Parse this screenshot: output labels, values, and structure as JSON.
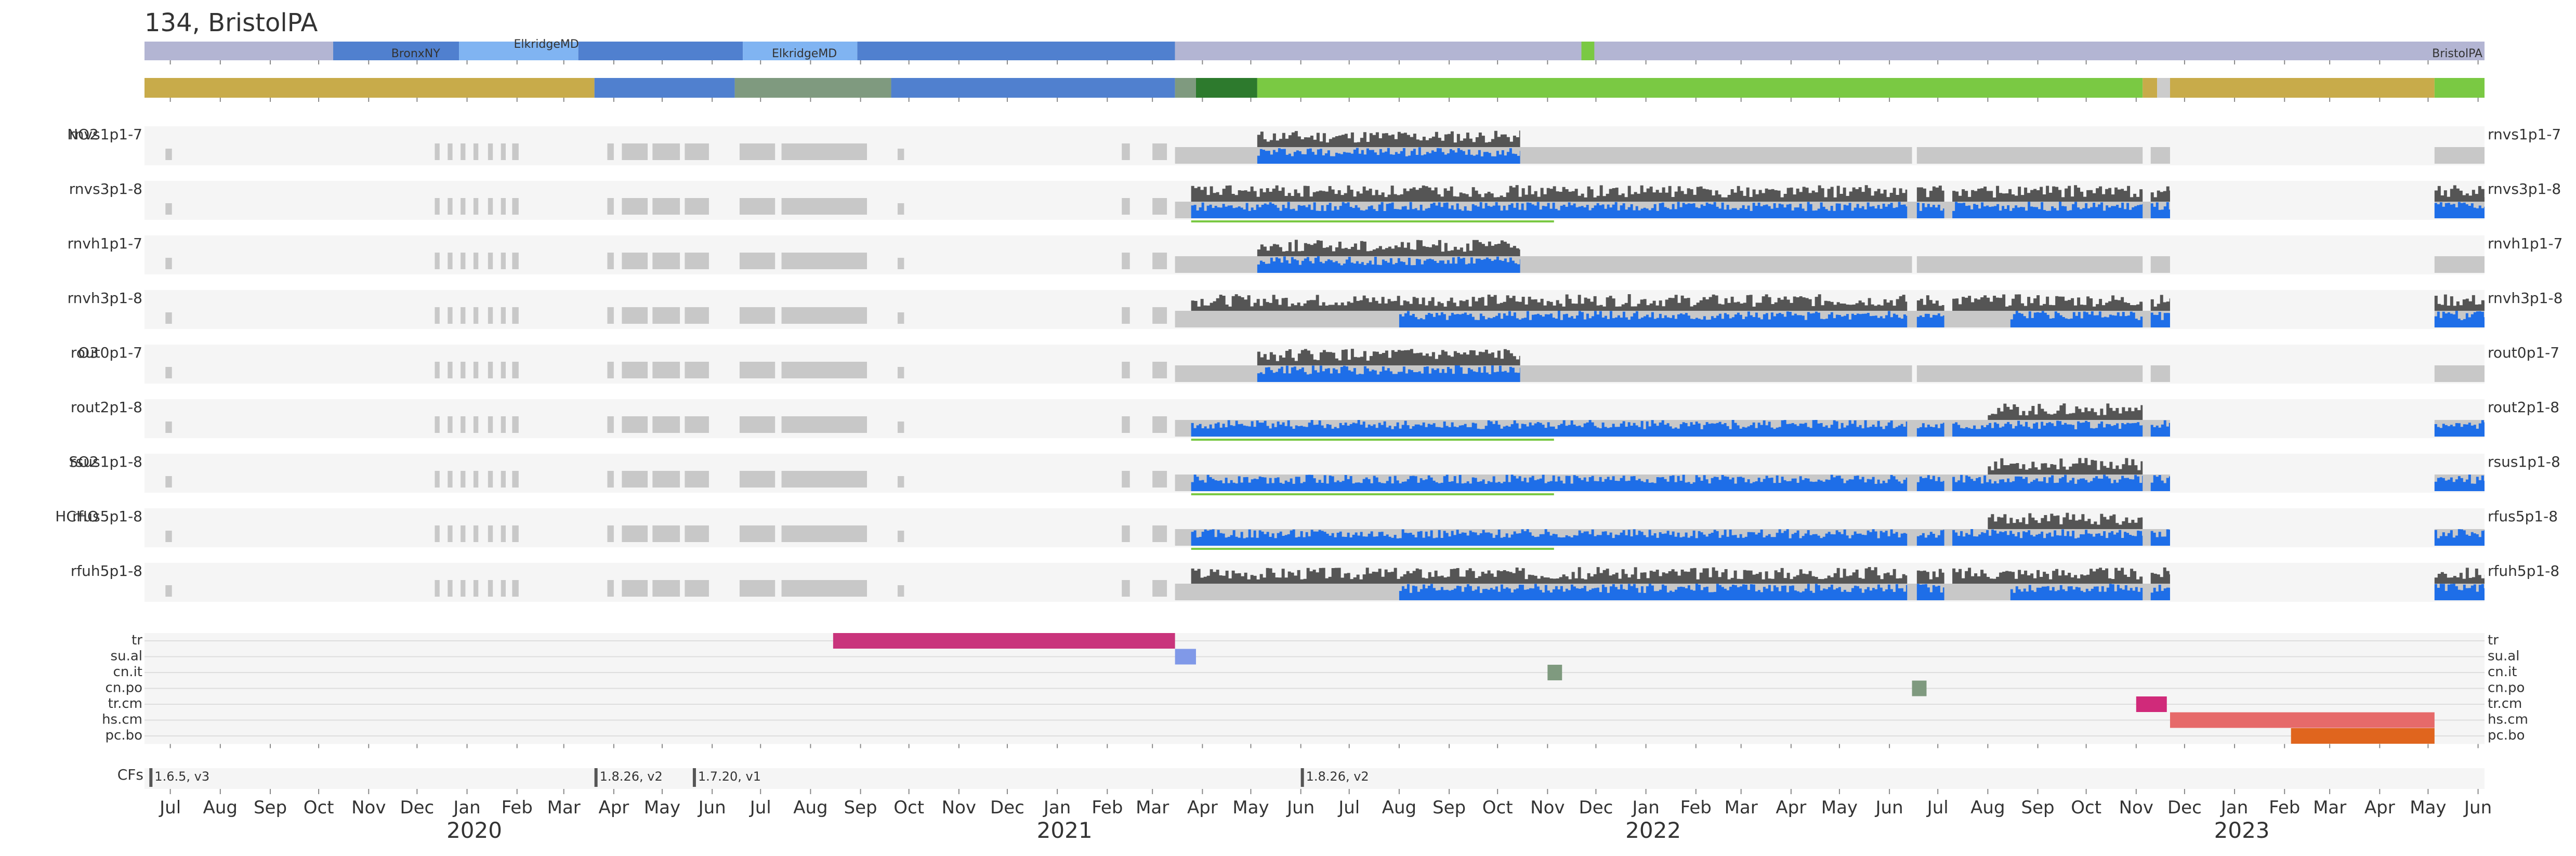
{
  "title": "134, BristolPA",
  "colors": {
    "row_bg": "#f5f5f5",
    "gray_bar": "#c8c8c8",
    "dark_bar": "#555555",
    "blue_bar": "#1e6ee8",
    "green_line": "#7ac943",
    "location_base": "#b3b5d3",
    "location_blue": "#5080cf",
    "location_light": "#80b4f2",
    "tick": "#888888"
  },
  "location_labels": [
    {
      "text": "BronxNY",
      "date": "2019-11-15",
      "row": "bottom"
    },
    {
      "text": "ElkridgeMD",
      "date": "2020-01-30",
      "row": "top"
    },
    {
      "text": "ElkridgeMD",
      "date": "2020-07-08",
      "row": "bottom"
    },
    {
      "text": "BristolPA",
      "date": "2023-06-05",
      "row": "bottom",
      "anchor": "end"
    }
  ],
  "location_segments": [
    {
      "start": "2019-06-15",
      "end": "2019-10-10",
      "color": "#b3b5d3"
    },
    {
      "start": "2019-10-10",
      "end": "2019-12-27",
      "color": "#5080cf"
    },
    {
      "start": "2019-12-27",
      "end": "2020-03-10",
      "color": "#80b4f2"
    },
    {
      "start": "2020-03-10",
      "end": "2020-06-20",
      "color": "#5080cf"
    },
    {
      "start": "2020-06-20",
      "end": "2020-08-30",
      "color": "#80b4f2"
    },
    {
      "start": "2020-08-30",
      "end": "2021-03-15",
      "color": "#5080cf"
    },
    {
      "start": "2021-03-15",
      "end": "2023-06-05",
      "color": "#b3b5d3"
    },
    {
      "start": "2021-11-22",
      "end": "2021-11-30",
      "color": "#7ac943"
    }
  ],
  "status_segments": [
    {
      "start": "2019-06-15",
      "end": "2020-03-20",
      "color": "#c8ab4a"
    },
    {
      "start": "2020-03-20",
      "end": "2020-06-15",
      "color": "#5080cf"
    },
    {
      "start": "2020-06-15",
      "end": "2020-09-20",
      "color": "#7f9a7f"
    },
    {
      "start": "2020-09-20",
      "end": "2021-03-15",
      "color": "#5080cf"
    },
    {
      "start": "2021-03-15",
      "end": "2021-03-28",
      "color": "#7f9a7f"
    },
    {
      "start": "2021-03-28",
      "end": "2021-05-05",
      "color": "#2d7a2d"
    },
    {
      "start": "2021-05-05",
      "end": "2022-11-05",
      "color": "#7ac943"
    },
    {
      "start": "2022-11-05",
      "end": "2022-11-14",
      "color": "#c8ab4a"
    },
    {
      "start": "2022-11-14",
      "end": "2022-11-22",
      "color": "#cccccc"
    },
    {
      "start": "2022-11-22",
      "end": "2023-05-05",
      "color": "#c8ab4a"
    },
    {
      "start": "2023-05-05",
      "end": "2023-06-05",
      "color": "#7ac943"
    }
  ],
  "channels": [
    {
      "species": "NO2",
      "name": "rnvs1p1-7",
      "dark": [
        [
          "2021-05-05",
          "2021-10-15"
        ]
      ],
      "blue": [
        [
          "2021-05-05",
          "2021-10-15"
        ]
      ],
      "gray": [
        [
          "2021-03-15",
          "2022-06-15"
        ],
        [
          "2022-06-18",
          "2022-11-05"
        ],
        [
          "2022-11-10",
          "2022-11-22"
        ],
        [
          "2023-05-05",
          "2023-06-05"
        ]
      ],
      "green": []
    },
    {
      "species": "",
      "name": "rnvs3p1-8",
      "dark": [
        [
          "2021-03-25",
          "2022-06-12"
        ],
        [
          "2022-06-18",
          "2022-07-05"
        ],
        [
          "2022-07-10",
          "2022-11-05"
        ],
        [
          "2022-11-10",
          "2022-11-22"
        ],
        [
          "2023-05-05",
          "2023-06-05"
        ]
      ],
      "blue": [
        [
          "2021-03-25",
          "2022-06-12"
        ],
        [
          "2022-06-18",
          "2022-07-05"
        ],
        [
          "2022-07-10",
          "2022-11-05"
        ],
        [
          "2022-11-10",
          "2022-11-22"
        ],
        [
          "2023-05-05",
          "2023-06-05"
        ]
      ],
      "gray": [
        [
          "2021-03-15",
          "2022-11-22"
        ],
        [
          "2023-05-05",
          "2023-06-05"
        ]
      ],
      "green": [
        [
          "2021-03-25",
          "2021-11-05"
        ]
      ]
    },
    {
      "species": "",
      "name": "rnvh1p1-7",
      "dark": [
        [
          "2021-05-05",
          "2021-10-15"
        ]
      ],
      "blue": [
        [
          "2021-05-05",
          "2021-10-15"
        ]
      ],
      "gray": [
        [
          "2021-03-15",
          "2022-06-15"
        ],
        [
          "2022-06-18",
          "2022-11-05"
        ],
        [
          "2022-11-10",
          "2022-11-22"
        ],
        [
          "2023-05-05",
          "2023-06-05"
        ]
      ],
      "green": []
    },
    {
      "species": "",
      "name": "rnvh3p1-8",
      "dark": [
        [
          "2021-03-25",
          "2022-06-12"
        ],
        [
          "2022-06-18",
          "2022-07-05"
        ],
        [
          "2022-07-10",
          "2022-11-05"
        ],
        [
          "2022-11-10",
          "2022-11-22"
        ],
        [
          "2023-05-05",
          "2023-06-05"
        ]
      ],
      "blue": [
        [
          "2021-08-01",
          "2022-06-12"
        ],
        [
          "2022-06-18",
          "2022-07-05"
        ],
        [
          "2022-08-15",
          "2022-11-05"
        ],
        [
          "2022-11-10",
          "2022-11-22"
        ],
        [
          "2023-05-05",
          "2023-06-05"
        ]
      ],
      "gray": [
        [
          "2021-03-15",
          "2022-11-22"
        ],
        [
          "2023-05-05",
          "2023-06-05"
        ]
      ],
      "green": []
    },
    {
      "species": "O3",
      "name": "rout0p1-7",
      "dark": [
        [
          "2021-05-05",
          "2021-10-15"
        ]
      ],
      "blue": [
        [
          "2021-05-05",
          "2021-10-15"
        ]
      ],
      "gray": [
        [
          "2021-03-15",
          "2022-06-15"
        ],
        [
          "2022-06-18",
          "2022-11-05"
        ],
        [
          "2022-11-10",
          "2022-11-22"
        ],
        [
          "2023-05-05",
          "2023-06-05"
        ]
      ],
      "green": []
    },
    {
      "species": "",
      "name": "rout2p1-8",
      "dark": [
        [
          "2022-08-01",
          "2022-11-05"
        ]
      ],
      "blue": [
        [
          "2021-03-25",
          "2022-06-12"
        ],
        [
          "2022-06-18",
          "2022-07-05"
        ],
        [
          "2022-07-10",
          "2022-11-05"
        ],
        [
          "2022-11-10",
          "2022-11-22"
        ],
        [
          "2023-05-05",
          "2023-06-05"
        ]
      ],
      "gray": [
        [
          "2021-03-15",
          "2022-11-22"
        ],
        [
          "2023-05-05",
          "2023-06-05"
        ]
      ],
      "green": [
        [
          "2021-03-25",
          "2021-11-05"
        ]
      ]
    },
    {
      "species": "SO2",
      "name": "rsus1p1-8",
      "dark": [
        [
          "2022-08-01",
          "2022-11-05"
        ]
      ],
      "blue": [
        [
          "2021-03-25",
          "2022-06-12"
        ],
        [
          "2022-06-18",
          "2022-07-05"
        ],
        [
          "2022-07-10",
          "2022-11-05"
        ],
        [
          "2022-11-10",
          "2022-11-22"
        ],
        [
          "2023-05-05",
          "2023-06-05"
        ]
      ],
      "gray": [
        [
          "2021-03-15",
          "2022-11-22"
        ],
        [
          "2023-05-05",
          "2023-06-05"
        ]
      ],
      "green": [
        [
          "2021-03-25",
          "2021-11-05"
        ]
      ]
    },
    {
      "species": "HCHO",
      "name": "rfus5p1-8",
      "dark": [
        [
          "2022-08-01",
          "2022-11-05"
        ]
      ],
      "blue": [
        [
          "2021-03-25",
          "2022-06-12"
        ],
        [
          "2022-06-18",
          "2022-07-05"
        ],
        [
          "2022-07-10",
          "2022-11-05"
        ],
        [
          "2022-11-10",
          "2022-11-22"
        ],
        [
          "2023-05-05",
          "2023-06-05"
        ]
      ],
      "gray": [
        [
          "2021-03-15",
          "2022-11-22"
        ],
        [
          "2023-05-05",
          "2023-06-05"
        ]
      ],
      "green": [
        [
          "2021-03-25",
          "2021-11-05"
        ]
      ]
    },
    {
      "species": "",
      "name": "rfuh5p1-8",
      "dark": [
        [
          "2021-03-25",
          "2022-06-12"
        ],
        [
          "2022-06-18",
          "2022-07-05"
        ],
        [
          "2022-07-10",
          "2022-11-05"
        ],
        [
          "2022-11-10",
          "2022-11-22"
        ],
        [
          "2023-05-05",
          "2023-06-05"
        ]
      ],
      "blue": [
        [
          "2021-08-01",
          "2022-06-12"
        ],
        [
          "2022-06-18",
          "2022-07-05"
        ],
        [
          "2022-08-15",
          "2022-11-05"
        ],
        [
          "2022-11-10",
          "2022-11-22"
        ],
        [
          "2023-05-05",
          "2023-06-05"
        ]
      ],
      "gray": [
        [
          "2021-03-15",
          "2022-11-22"
        ],
        [
          "2023-05-05",
          "2023-06-05"
        ]
      ],
      "green": []
    }
  ],
  "early_gray_clusters": [
    [
      "2019-06-28",
      "2019-07-02"
    ],
    [
      "2019-12-12",
      "2019-12-15"
    ],
    [
      "2019-12-20",
      "2019-12-23"
    ],
    [
      "2019-12-28",
      "2019-12-31"
    ],
    [
      "2020-01-05",
      "2020-01-08"
    ],
    [
      "2020-01-14",
      "2020-01-17"
    ],
    [
      "2020-01-22",
      "2020-01-25"
    ],
    [
      "2020-01-29",
      "2020-02-02"
    ],
    [
      "2020-03-28",
      "2020-04-01"
    ],
    [
      "2020-04-06",
      "2020-04-22"
    ],
    [
      "2020-04-25",
      "2020-05-12"
    ],
    [
      "2020-05-15",
      "2020-05-30"
    ],
    [
      "2020-06-18",
      "2020-07-10"
    ],
    [
      "2020-07-14",
      "2020-09-05"
    ],
    [
      "2020-09-24",
      "2020-09-28"
    ],
    [
      "2021-02-10",
      "2021-02-15"
    ],
    [
      "2021-03-01",
      "2021-03-10"
    ]
  ],
  "events": [
    {
      "label": "tr",
      "segments": [
        {
          "start": "2020-08-15",
          "end": "2021-03-15",
          "color": "#c9347c"
        }
      ]
    },
    {
      "label": "su.al",
      "segments": [
        {
          "start": "2021-03-15",
          "end": "2021-03-28",
          "color": "#8099e8"
        }
      ]
    },
    {
      "label": "cn.it",
      "segments": [
        {
          "start": "2021-11-01",
          "end": "2021-11-10",
          "color": "#7f9a7f"
        }
      ]
    },
    {
      "label": "cn.po",
      "segments": [
        {
          "start": "2022-06-15",
          "end": "2022-06-24",
          "color": "#7f9a7f"
        }
      ]
    },
    {
      "label": "tr.cm",
      "segments": [
        {
          "start": "2022-11-01",
          "end": "2022-11-20",
          "color": "#d02a7a"
        }
      ]
    },
    {
      "label": "hs.cm",
      "segments": [
        {
          "start": "2022-11-22",
          "end": "2023-05-05",
          "color": "#e66a6a"
        }
      ]
    },
    {
      "label": "pc.bo",
      "segments": [
        {
          "start": "2023-02-05",
          "end": "2023-05-05",
          "color": "#e0651e"
        }
      ]
    }
  ],
  "cfs": {
    "label": "CFs",
    "markers": [
      {
        "date": "2019-06-18",
        "text": "1.6.5, v3"
      },
      {
        "date": "2020-03-20",
        "text": "1.8.26, v2"
      },
      {
        "date": "2020-05-20",
        "text": "1.7.20, v1"
      },
      {
        "date": "2021-06-01",
        "text": "1.8.26, v2"
      }
    ]
  },
  "chart_data": {
    "type": "timeline",
    "title": "134, BristolPA",
    "x_range": [
      "2019-06-15",
      "2023-06-05"
    ],
    "months": [
      {
        "label": "Jul",
        "date": "2019-07-01"
      },
      {
        "label": "Aug",
        "date": "2019-08-01"
      },
      {
        "label": "Sep",
        "date": "2019-09-01"
      },
      {
        "label": "Oct",
        "date": "2019-10-01"
      },
      {
        "label": "Nov",
        "date": "2019-11-01"
      },
      {
        "label": "Dec",
        "date": "2019-12-01"
      },
      {
        "label": "Jan",
        "date": "2020-01-01"
      },
      {
        "label": "Feb",
        "date": "2020-02-01"
      },
      {
        "label": "Mar",
        "date": "2020-03-01"
      },
      {
        "label": "Apr",
        "date": "2020-04-01"
      },
      {
        "label": "May",
        "date": "2020-05-01"
      },
      {
        "label": "Jun",
        "date": "2020-06-01"
      },
      {
        "label": "Jul",
        "date": "2020-07-01"
      },
      {
        "label": "Aug",
        "date": "2020-08-01"
      },
      {
        "label": "Sep",
        "date": "2020-09-01"
      },
      {
        "label": "Oct",
        "date": "2020-10-01"
      },
      {
        "label": "Nov",
        "date": "2020-11-01"
      },
      {
        "label": "Dec",
        "date": "2020-12-01"
      },
      {
        "label": "Jan",
        "date": "2021-01-01"
      },
      {
        "label": "Feb",
        "date": "2021-02-01"
      },
      {
        "label": "Mar",
        "date": "2021-03-01"
      },
      {
        "label": "Apr",
        "date": "2021-04-01"
      },
      {
        "label": "May",
        "date": "2021-05-01"
      },
      {
        "label": "Jun",
        "date": "2021-06-01"
      },
      {
        "label": "Jul",
        "date": "2021-07-01"
      },
      {
        "label": "Aug",
        "date": "2021-08-01"
      },
      {
        "label": "Sep",
        "date": "2021-09-01"
      },
      {
        "label": "Oct",
        "date": "2021-10-01"
      },
      {
        "label": "Nov",
        "date": "2021-11-01"
      },
      {
        "label": "Dec",
        "date": "2021-12-01"
      },
      {
        "label": "Jan",
        "date": "2022-01-01"
      },
      {
        "label": "Feb",
        "date": "2022-02-01"
      },
      {
        "label": "Mar",
        "date": "2022-03-01"
      },
      {
        "label": "Apr",
        "date": "2022-04-01"
      },
      {
        "label": "May",
        "date": "2022-05-01"
      },
      {
        "label": "Jun",
        "date": "2022-06-01"
      },
      {
        "label": "Jul",
        "date": "2022-07-01"
      },
      {
        "label": "Aug",
        "date": "2022-08-01"
      },
      {
        "label": "Sep",
        "date": "2022-09-01"
      },
      {
        "label": "Oct",
        "date": "2022-10-01"
      },
      {
        "label": "Nov",
        "date": "2022-11-01"
      },
      {
        "label": "Dec",
        "date": "2022-12-01"
      },
      {
        "label": "Jan",
        "date": "2023-01-01"
      },
      {
        "label": "Feb",
        "date": "2023-02-01"
      },
      {
        "label": "Mar",
        "date": "2023-03-01"
      },
      {
        "label": "Apr",
        "date": "2023-04-01"
      },
      {
        "label": "May",
        "date": "2023-05-01"
      },
      {
        "label": "Jun",
        "date": "2023-06-01"
      }
    ],
    "years": [
      {
        "label": "2020",
        "date": "2020-01-01"
      },
      {
        "label": "2021",
        "date": "2021-01-01"
      },
      {
        "label": "2022",
        "date": "2022-01-01"
      },
      {
        "label": "2023",
        "date": "2023-01-01"
      }
    ],
    "grid": false,
    "legend": "none"
  }
}
